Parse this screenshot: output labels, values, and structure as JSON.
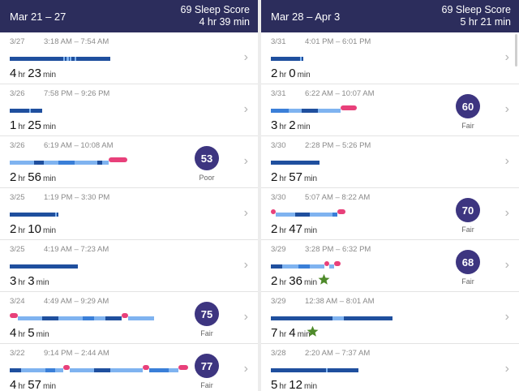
{
  "left": {
    "header": {
      "range": "Mar 21 – 27",
      "score": "69 Sleep Score",
      "total": "4 hr 39 min"
    },
    "rows": [
      {
        "date": "3/27",
        "time": "3:18 AM – 7:54 AM",
        "h": "4",
        "m": "23",
        "score": "",
        "quality": ""
      },
      {
        "date": "3/26",
        "time": "7:58 PM – 9:26 PM",
        "h": "1",
        "m": "25",
        "score": "",
        "quality": ""
      },
      {
        "date": "3/26",
        "time": "6:19 AM – 10:08 AM",
        "h": "2",
        "m": "56",
        "score": "53",
        "quality": "Poor"
      },
      {
        "date": "3/25",
        "time": "1:19 PM – 3:30 PM",
        "h": "2",
        "m": "10",
        "score": "",
        "quality": ""
      },
      {
        "date": "3/25",
        "time": "4:19 AM – 7:23 AM",
        "h": "3",
        "m": "3",
        "score": "",
        "quality": ""
      },
      {
        "date": "3/24",
        "time": "4:49 AM – 9:29 AM",
        "h": "4",
        "m": "5",
        "score": "75",
        "quality": "Fair"
      },
      {
        "date": "3/22",
        "time": "9:14 PM – 2:44 AM",
        "h": "4",
        "m": "57",
        "score": "77",
        "quality": "Fair"
      }
    ]
  },
  "right": {
    "header": {
      "range": "Mar 28 – Apr 3",
      "score": "69 Sleep Score",
      "total": "5 hr 21 min"
    },
    "rows": [
      {
        "date": "3/31",
        "time": "4:01 PM – 6:01 PM",
        "h": "2",
        "m": "0",
        "score": "",
        "quality": ""
      },
      {
        "date": "3/31",
        "time": "6:22 AM – 10:07 AM",
        "h": "3",
        "m": "2",
        "score": "60",
        "quality": "Fair"
      },
      {
        "date": "3/30",
        "time": "2:28 PM – 5:26 PM",
        "h": "2",
        "m": "57",
        "score": "",
        "quality": ""
      },
      {
        "date": "3/30",
        "time": "5:07 AM – 8:22 AM",
        "h": "2",
        "m": "47",
        "score": "70",
        "quality": "Fair"
      },
      {
        "date": "3/29",
        "time": "3:28 PM – 6:32 PM",
        "h": "2",
        "m": "36",
        "score": "68",
        "quality": "Fair"
      },
      {
        "date": "3/29",
        "time": "12:38 AM – 8:01 AM",
        "h": "7",
        "m": "4",
        "score": "",
        "quality": ""
      },
      {
        "date": "3/28",
        "time": "2:20 AM – 7:37 AM",
        "h": "5",
        "m": "12",
        "score": "",
        "quality": ""
      }
    ]
  },
  "units": {
    "hr": "hr",
    "min": "min"
  },
  "icons": {
    "chevron": "chevron-right-icon",
    "star": "star-icon"
  },
  "colors": {
    "header": "#2c2d5c",
    "badge": "#3d3580",
    "awake": "#e8407a",
    "deep": "#1f4f9e",
    "light": "#7fb3f0",
    "rem": "#3a7fd8",
    "star": "#4e8a2a"
  }
}
